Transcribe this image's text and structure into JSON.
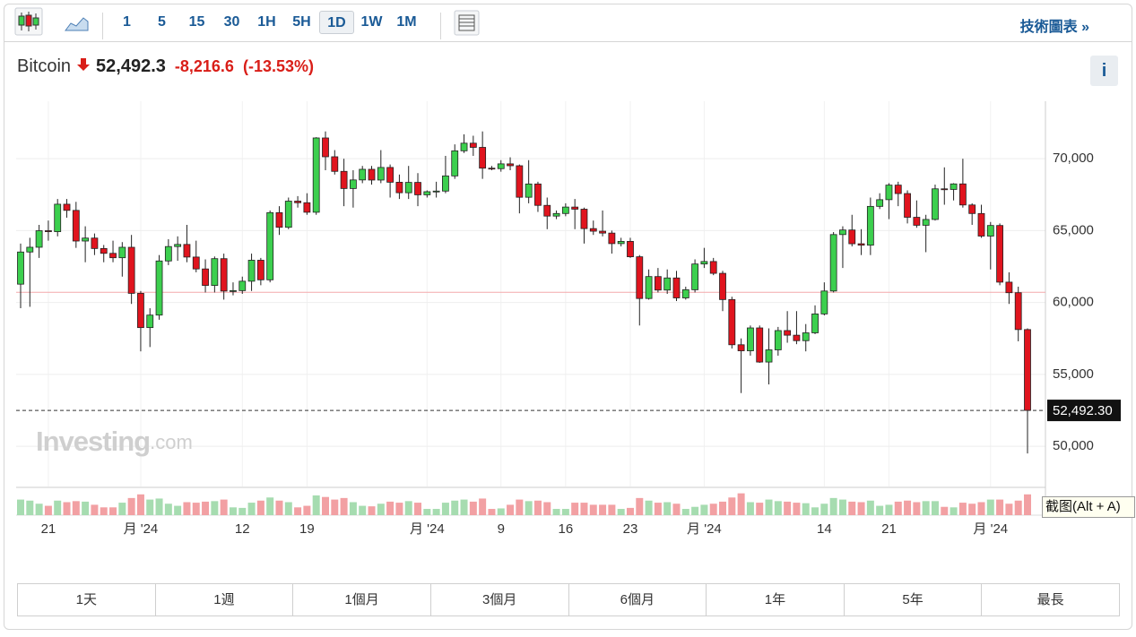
{
  "toolbar": {
    "intervals": [
      "1",
      "5",
      "15",
      "30",
      "1H",
      "5H",
      "1D",
      "1W",
      "1M"
    ],
    "active_interval": 6,
    "link": "技術圖表 »"
  },
  "header": {
    "name": "Bitcoin",
    "price": "52,492.3",
    "change": "-8,216.6",
    "change_pct": "(-13.53%)",
    "info": "i"
  },
  "chart_data": {
    "type": "candlestick",
    "categories": [
      null,
      null,
      null,
      "21",
      null,
      null,
      null,
      null,
      null,
      null,
      null,
      null,
      null,
      "月 '24",
      null,
      null,
      null,
      null,
      null,
      null,
      null,
      null,
      null,
      null,
      "12",
      null,
      null,
      null,
      null,
      null,
      null,
      "19",
      null,
      null,
      null,
      null,
      null,
      null,
      null,
      null,
      null,
      null,
      null,
      null,
      "月 '24",
      null,
      null,
      null,
      null,
      null,
      null,
      null,
      "9",
      null,
      null,
      null,
      null,
      null,
      null,
      "16",
      null,
      null,
      null,
      null,
      null,
      null,
      "23",
      null,
      null,
      null,
      null,
      null,
      null,
      null,
      "月 '24",
      null,
      null,
      null,
      null,
      null,
      null,
      null,
      null,
      null,
      null,
      null,
      null,
      "14",
      null,
      null,
      null,
      null,
      null,
      null,
      "21",
      null,
      null,
      null,
      null,
      null,
      null,
      null,
      null,
      null,
      null,
      "月 '24",
      null,
      null,
      null,
      null
    ],
    "open": [
      61275,
      63512,
      63843,
      64994,
      64927,
      66837,
      66407,
      64276,
      64481,
      63755,
      63419,
      63113,
      63841,
      60636,
      58254,
      59123,
      62889,
      63892,
      64039,
      63161,
      62334,
      61187,
      63049,
      60793,
      60826,
      61480,
      62940,
      61577,
      66250,
      65231,
      67051,
      66940,
      66278,
      71446,
      70137,
      69122,
      67929,
      68526,
      69265,
      68518,
      69394,
      68366,
      67635,
      68354,
      67491,
      67707,
      67751,
      68805,
      70551,
      71082,
      70791,
      69344,
      69310,
      69644,
      69513,
      67321,
      68244,
      66756,
      66011,
      66191,
      66639,
      66490,
      65140,
      64960,
      64828,
      64096,
      64252,
      63180,
      60277,
      61804,
      60864,
      61707,
      60319,
      60888,
      62678,
      62851,
      62029,
      60204,
      57060,
      56639,
      58231,
      55857,
      56705,
      58047,
      57725,
      57344,
      57890,
      59204,
      60798,
      64725,
      65044,
      64086,
      63987,
      66686,
      67152,
      68166,
      67578,
      65927,
      65372,
      65776,
      67907,
      67864,
      68249,
      66784,
      66190,
      64619,
      65357,
      61415,
      60680,
      58116
    ],
    "high": [
      64100,
      64500,
      65400,
      65700,
      67200,
      67200,
      67000,
      65300,
      64800,
      64000,
      64300,
      64200,
      64700,
      60800,
      59600,
      63300,
      64400,
      64600,
      65400,
      64300,
      63000,
      63200,
      63400,
      61400,
      61800,
      63400,
      63100,
      66400,
      66700,
      67300,
      67400,
      67600,
      71500,
      71900,
      70600,
      70000,
      69200,
      69500,
      69500,
      70600,
      69600,
      68900,
      69500,
      69000,
      67800,
      68400,
      70200,
      71000,
      71700,
      71600,
      71900,
      69500,
      69900,
      70100,
      69600,
      69900,
      68400,
      67300,
      66400,
      66900,
      67200,
      66600,
      65700,
      66400,
      65000,
      64500,
      64500,
      63300,
      62300,
      62400,
      62300,
      62200,
      61100,
      63000,
      63800,
      63100,
      62200,
      60400,
      57500,
      58400,
      58400,
      58200,
      58300,
      59400,
      59400,
      58500,
      59800,
      61400,
      64900,
      65300,
      66100,
      65100,
      67300,
      67600,
      68300,
      68400,
      67800,
      67100,
      66100,
      68200,
      69400,
      68300,
      70000,
      66900,
      66800,
      65600,
      65500,
      62100,
      61100,
      58200
    ],
    "low": [
      59600,
      59700,
      63100,
      64300,
      64600,
      65900,
      63800,
      62800,
      63300,
      62800,
      62800,
      61800,
      59900,
      56600,
      56900,
      58800,
      62600,
      62900,
      62800,
      62100,
      60700,
      60700,
      60200,
      60500,
      60600,
      60800,
      61200,
      61400,
      64700,
      65100,
      66600,
      66100,
      66100,
      69200,
      68900,
      66700,
      66600,
      68300,
      68200,
      68300,
      67300,
      67200,
      67200,
      66700,
      67300,
      67300,
      67600,
      68600,
      70400,
      70200,
      68600,
      69200,
      69100,
      69200,
      66200,
      66900,
      66300,
      65100,
      65800,
      66000,
      65100,
      64100,
      64700,
      64600,
      63400,
      63900,
      63100,
      58400,
      60200,
      60700,
      60600,
      60100,
      60200,
      60700,
      62400,
      61900,
      59400,
      56800,
      53700,
      56300,
      55800,
      54300,
      56300,
      57200,
      57100,
      56600,
      57800,
      59100,
      60700,
      62400,
      63900,
      63300,
      63300,
      66500,
      65800,
      66700,
      65500,
      65200,
      63500,
      65700,
      66800,
      67100,
      66600,
      65400,
      64500,
      62300,
      61200,
      59900,
      57300,
      49500
    ],
    "close": [
      63512,
      63843,
      64994,
      64927,
      66837,
      66407,
      64276,
      64481,
      63755,
      63419,
      63113,
      63841,
      60636,
      58254,
      59123,
      62889,
      63892,
      64039,
      63161,
      62334,
      61187,
      63049,
      60793,
      60826,
      61480,
      62940,
      61577,
      66250,
      65231,
      67051,
      66940,
      66278,
      71446,
      70137,
      69122,
      67929,
      68526,
      69265,
      68518,
      69394,
      68366,
      67635,
      68354,
      67491,
      67707,
      67751,
      68805,
      70551,
      71082,
      70791,
      69344,
      69310,
      69644,
      69513,
      67321,
      68244,
      66756,
      66011,
      66191,
      66639,
      66490,
      65140,
      64960,
      64828,
      64096,
      64252,
      63180,
      60277,
      61804,
      60864,
      61707,
      60319,
      60888,
      62678,
      62851,
      62029,
      60204,
      57060,
      56639,
      58231,
      55857,
      56705,
      58047,
      57725,
      57344,
      57890,
      59204,
      60798,
      64725,
      65044,
      64086,
      63987,
      66686,
      67152,
      68166,
      67578,
      65927,
      65372,
      65776,
      67907,
      67864,
      68249,
      66784,
      66190,
      64619,
      65357,
      61415,
      60680,
      58116,
      52492
    ],
    "volume": [
      30,
      28,
      22,
      18,
      28,
      25,
      27,
      26,
      20,
      15,
      15,
      24,
      33,
      40,
      30,
      32,
      22,
      18,
      25,
      24,
      26,
      27,
      30,
      15,
      14,
      24,
      28,
      34,
      28,
      25,
      15,
      18,
      38,
      35,
      30,
      33,
      25,
      18,
      17,
      22,
      26,
      24,
      27,
      24,
      12,
      12,
      24,
      28,
      30,
      26,
      32,
      12,
      13,
      20,
      30,
      27,
      28,
      25,
      12,
      12,
      24,
      24,
      20,
      20,
      20,
      12,
      14,
      33,
      28,
      24,
      25,
      22,
      12,
      16,
      20,
      22,
      26,
      34,
      42,
      25,
      24,
      30,
      27,
      26,
      24,
      23,
      15,
      22,
      33,
      30,
      26,
      25,
      28,
      18,
      20,
      26,
      28,
      25,
      27,
      27,
      16,
      15,
      24,
      22,
      25,
      30,
      30,
      22,
      28,
      40
    ],
    "volume_lim": [
      0,
      100
    ],
    "up_color": "#3ccf4e",
    "down_color": "#e0141e",
    "volume_up_color": "#a6dcb0",
    "volume_down_color": "#f2a0a3",
    "ylim": [
      47200,
      74000
    ],
    "yticks": [
      {
        "value": 50000,
        "label": "50,000"
      },
      {
        "value": 55000,
        "label": "55,000"
      },
      {
        "value": 60000,
        "label": "60,000"
      },
      {
        "value": 65000,
        "label": "65,000"
      },
      {
        "value": 70000,
        "label": "70,000"
      }
    ],
    "grid": true,
    "previous_close": 60708.9,
    "last_price": {
      "value": 52492.3,
      "label": "52,492.30"
    },
    "watermark": {
      "main": "Investing",
      "suffix": ".com"
    }
  },
  "ranges": [
    "1天",
    "1週",
    "1個月",
    "3個月",
    "6個月",
    "1年",
    "5年",
    "最長"
  ],
  "tooltip": "截图(Alt + A)"
}
